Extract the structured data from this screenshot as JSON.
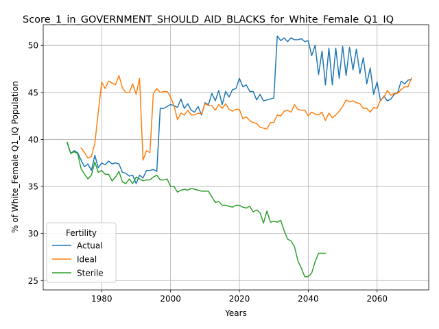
{
  "chart_data": {
    "type": "line",
    "title": "Score_1_in_GOVERNMENT_SHOULD_AID_BLACKS_for_White_Female_Q1_IQ",
    "xlabel": "Years",
    "ylabel": "% of White_Female Q1_IQ Population",
    "xlim": [
      1963,
      2075
    ],
    "ylim": [
      24.0,
      52.2
    ],
    "xticks": [
      1980,
      2000,
      2020,
      2040,
      2060
    ],
    "yticks": [
      25,
      30,
      35,
      40,
      45,
      50
    ],
    "grid": true,
    "legend": {
      "title": "Fertility",
      "placement": "lower-left"
    },
    "series": [
      {
        "name": "Actual",
        "color": "#1f77b4",
        "x": [
          1970,
          1971,
          1972,
          1973,
          1974,
          1975,
          1976,
          1977,
          1978,
          1979,
          1980,
          1981,
          1982,
          1983,
          1984,
          1985,
          1986,
          1987,
          1988,
          1989,
          1990,
          1991,
          1992,
          1993,
          1994,
          1995,
          1996,
          1997,
          1998,
          1999,
          2000,
          2001,
          2002,
          2003,
          2004,
          2005,
          2006,
          2007,
          2008,
          2009,
          2010,
          2011,
          2012,
          2013,
          2014,
          2015,
          2016,
          2017,
          2018,
          2019,
          2020,
          2021,
          2022,
          2023,
          2024,
          2025,
          2026,
          2027,
          2028,
          2029,
          2030,
          2031,
          2032,
          2033,
          2034,
          2035,
          2036,
          2037,
          2038,
          2039,
          2040,
          2041,
          2042,
          2043,
          2044,
          2045,
          2046,
          2047,
          2048,
          2049,
          2050,
          2051,
          2052,
          2053,
          2054,
          2055,
          2056,
          2057,
          2058,
          2059,
          2060,
          2061,
          2062,
          2063,
          2064,
          2065,
          2066,
          2067,
          2068,
          2069,
          2070
        ],
        "values": [
          39.6,
          38.5,
          38.8,
          38.6,
          37.8,
          37.1,
          37.4,
          36.7,
          38.3,
          37.0,
          37.5,
          37.3,
          37.7,
          37.4,
          37.5,
          37.4,
          36.5,
          36.4,
          36.1,
          36.2,
          35.3,
          36.2,
          35.9,
          36.7,
          36.7,
          36.8,
          36.6,
          43.3,
          43.3,
          43.5,
          43.7,
          43.6,
          43.4,
          44.3,
          43.3,
          43.8,
          43.1,
          42.9,
          43.5,
          42.6,
          43.9,
          43.7,
          44.9,
          44.1,
          45.2,
          43.7,
          45.1,
          44.5,
          45.3,
          45.4,
          46.5,
          45.6,
          45.8,
          45.1,
          45.1,
          44.2,
          44.8,
          44.1,
          44.2,
          44.3,
          44.4,
          51.0,
          50.5,
          50.8,
          50.4,
          50.8,
          50.6,
          50.6,
          50.7,
          50.4,
          50.5,
          48.9,
          50.0,
          46.9,
          49.4,
          45.8,
          49.7,
          45.8,
          49.7,
          46.5,
          49.9,
          46.8,
          49.8,
          47.4,
          49.6,
          47.0,
          48.7,
          45.9,
          47.6,
          44.8,
          46.1,
          44.1,
          44.6,
          44.1,
          44.3,
          44.8,
          45.0,
          46.2,
          45.9,
          46.3,
          46.4
        ]
      },
      {
        "name": "Ideal",
        "color": "#ff7f0e",
        "x": [
          1974,
          1975,
          1976,
          1977,
          1978,
          1979,
          1980,
          1981,
          1982,
          1983,
          1984,
          1985,
          1986,
          1987,
          1988,
          1989,
          1990,
          1991,
          1992,
          1993,
          1994,
          1995,
          1996,
          1997,
          1998,
          1999,
          2000,
          2001,
          2002,
          2003,
          2004,
          2005,
          2006,
          2007,
          2008,
          2009,
          2010,
          2011,
          2012,
          2013,
          2014,
          2015,
          2016,
          2017,
          2018,
          2019,
          2020,
          2021,
          2022,
          2023,
          2024,
          2025,
          2026,
          2027,
          2028,
          2029,
          2030,
          2031,
          2032,
          2033,
          2034,
          2035,
          2036,
          2037,
          2038,
          2039,
          2040,
          2041,
          2042,
          2043,
          2044,
          2045,
          2046,
          2047,
          2048,
          2049,
          2050,
          2051,
          2052,
          2053,
          2054,
          2055,
          2056,
          2057,
          2058,
          2059,
          2060,
          2061,
          2062,
          2063,
          2064,
          2065,
          2066,
          2067,
          2068,
          2069,
          2070
        ],
        "values": [
          39.1,
          38.6,
          38.0,
          38.2,
          39.6,
          42.9,
          46.1,
          45.4,
          46.2,
          46.0,
          45.8,
          46.8,
          45.5,
          45.0,
          45.0,
          45.9,
          44.8,
          46.5,
          37.8,
          38.8,
          38.6,
          44.9,
          45.4,
          45.0,
          45.1,
          45.1,
          44.5,
          43.6,
          42.1,
          42.8,
          42.6,
          43.1,
          42.6,
          42.6,
          42.8,
          42.7,
          43.8,
          43.6,
          43.6,
          43.1,
          43.7,
          43.3,
          43.8,
          43.2,
          43.0,
          43.2,
          43.2,
          42.2,
          42.4,
          42.0,
          41.8,
          41.7,
          41.3,
          41.2,
          41.1,
          41.8,
          41.8,
          42.6,
          42.5,
          43.0,
          43.1,
          42.9,
          43.7,
          43.2,
          43.1,
          43.1,
          42.5,
          42.9,
          42.7,
          42.6,
          42.9,
          42.0,
          42.8,
          42.3,
          42.6,
          43.0,
          43.5,
          44.2,
          44.0,
          44.1,
          43.9,
          43.8,
          43.3,
          43.3,
          42.9,
          43.4,
          43.3,
          44.2,
          44.5,
          45.2,
          44.7,
          44.9,
          44.9,
          45.3,
          45.6,
          45.6,
          46.5
        ]
      },
      {
        "name": "Sterile",
        "color": "#2ca02c",
        "x": [
          1970,
          1971,
          1972,
          1973,
          1974,
          1975,
          1976,
          1977,
          1978,
          1979,
          1980,
          1981,
          1982,
          1983,
          1984,
          1985,
          1986,
          1987,
          1988,
          1989,
          1990,
          1991,
          1992,
          1993,
          1994,
          1995,
          1996,
          1997,
          1998,
          1999,
          2000,
          2001,
          2002,
          2003,
          2004,
          2005,
          2006,
          2007,
          2008,
          2009,
          2010,
          2011,
          2012,
          2013,
          2014,
          2015,
          2016,
          2017,
          2018,
          2019,
          2020,
          2021,
          2022,
          2023,
          2024,
          2025,
          2026,
          2027,
          2028,
          2029,
          2030,
          2031,
          2032,
          2033,
          2034,
          2035,
          2036,
          2037,
          2038,
          2039,
          2040,
          2041,
          2042,
          2043,
          2044,
          2045
        ],
        "values": [
          39.7,
          38.5,
          38.7,
          38.5,
          36.9,
          36.3,
          35.8,
          36.2,
          37.6,
          36.5,
          36.7,
          36.3,
          36.3,
          35.6,
          36.0,
          36.6,
          35.5,
          35.3,
          35.8,
          35.3,
          36.0,
          35.8,
          35.6,
          35.7,
          35.7,
          36.0,
          36.2,
          35.7,
          35.7,
          35.8,
          35.0,
          35.0,
          34.4,
          34.6,
          34.7,
          34.6,
          34.8,
          34.7,
          34.6,
          34.5,
          34.5,
          34.5,
          33.9,
          33.3,
          33.4,
          33.0,
          33.0,
          32.9,
          32.8,
          33.0,
          33.0,
          32.8,
          32.7,
          32.9,
          32.3,
          32.5,
          32.2,
          31.1,
          32.4,
          31.2,
          31.3,
          31.2,
          31.4,
          30.3,
          29.4,
          29.2,
          28.6,
          27.1,
          26.3,
          25.4,
          25.4,
          25.8,
          27.0,
          27.9,
          27.9,
          27.9
        ]
      }
    ]
  }
}
